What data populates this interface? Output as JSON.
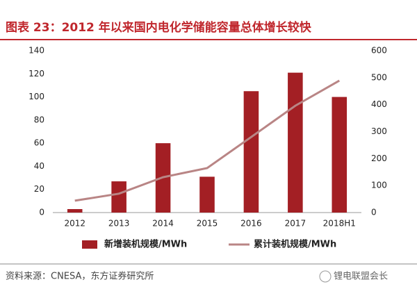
{
  "chart_data": {
    "type": "bar-line",
    "title": "图表 23：2012 年以来国内电化学储能容量总体增长较快",
    "categories": [
      "2012",
      "2013",
      "2014",
      "2015",
      "2016",
      "2017",
      "2018H1"
    ],
    "series": [
      {
        "name": "新增装机规模/MWh",
        "type": "bar",
        "color": "#a31f24",
        "values": [
          3,
          27,
          60,
          31,
          105,
          121,
          100
        ]
      },
      {
        "name": "累计装机规模/MWh",
        "type": "line",
        "axis": "y2",
        "color": "#b98585",
        "values": [
          44,
          70,
          131,
          165,
          280,
          396,
          489
        ]
      }
    ],
    "ylim": [
      0,
      140
    ],
    "yticks": [
      0,
      20,
      40,
      60,
      80,
      100,
      120,
      140
    ],
    "y2lim": [
      0,
      600
    ],
    "y2ticks": [
      0,
      100,
      200,
      300,
      400,
      500,
      600
    ],
    "source": "资料来源：CNESA，东方证券研究所",
    "watermark": "锂电联盟会长"
  }
}
